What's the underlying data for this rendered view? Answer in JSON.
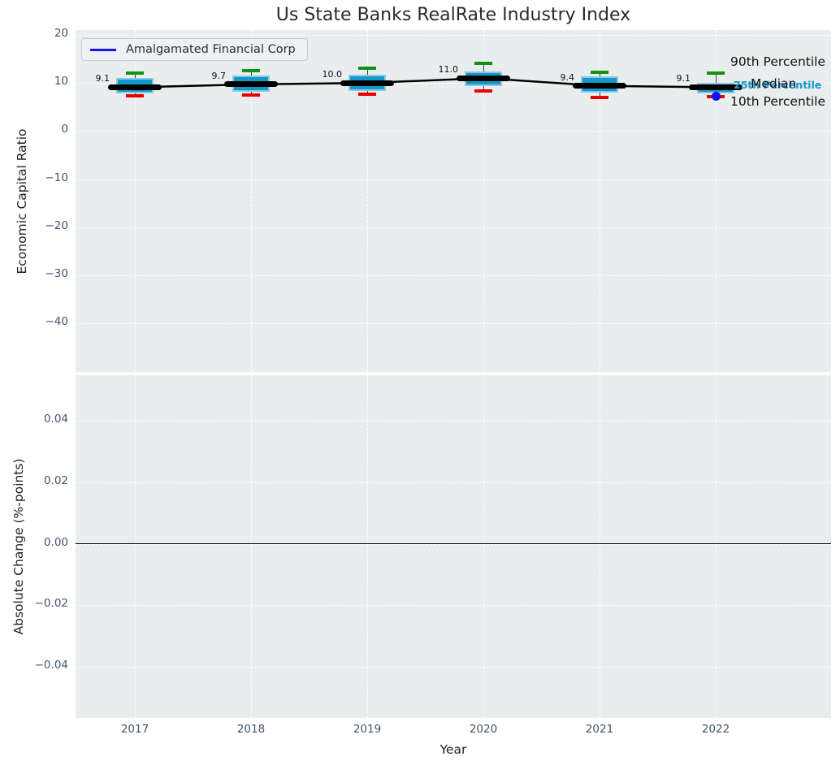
{
  "figure": {
    "title": "Us State Banks RealRate Industry Index",
    "legend": {
      "label": "Amalgamated Financial Corp",
      "line_color": "#1412e6"
    },
    "annotations": {
      "p90": "90th Percentile",
      "median": "Median",
      "p75_blue": "75th Percentile",
      "p25_blue": "25th Percentile",
      "p10": "10th Percentile"
    }
  },
  "chart_data": {
    "type": "box",
    "title": "Us State Banks RealRate Industry Index",
    "x": [
      "2017",
      "2018",
      "2019",
      "2020",
      "2021",
      "2022"
    ],
    "xlabel": "Year",
    "panels": [
      {
        "ylabel": "Economic Capital Ratio",
        "ylim": [
          -50.1,
          21.0
        ],
        "yticks": [
          {
            "v": 20,
            "label": "20"
          },
          {
            "v": 10,
            "label": "10"
          },
          {
            "v": 0,
            "label": "0"
          },
          {
            "v": -10,
            "label": "−10"
          },
          {
            "v": -20,
            "label": "−20"
          },
          {
            "v": -30,
            "label": "−30"
          },
          {
            "v": -40,
            "label": "−40"
          }
        ],
        "boxes": [
          {
            "year": "2017",
            "p90": 12.1,
            "p75": 11.1,
            "median": 9.1,
            "p25": 7.9,
            "p10": 7.4
          },
          {
            "year": "2018",
            "p90": 12.6,
            "p75": 11.5,
            "median": 9.7,
            "p25": 8.2,
            "p10": 7.5
          },
          {
            "year": "2019",
            "p90": 13.0,
            "p75": 11.7,
            "median": 10.0,
            "p25": 8.3,
            "p10": 7.6
          },
          {
            "year": "2020",
            "p90": 14.0,
            "p75": 12.4,
            "median": 11.0,
            "p25": 9.4,
            "p10": 8.3
          },
          {
            "year": "2021",
            "p90": 12.3,
            "p75": 11.3,
            "median": 9.4,
            "p25": 8.0,
            "p10": 7.0
          },
          {
            "year": "2022",
            "p90": 12.1,
            "p75": 10.1,
            "median": 9.1,
            "p25": 7.8,
            "p10": 7.2
          }
        ],
        "median_labels": [
          "9.1",
          "9.7",
          "10.0",
          "11.0",
          "9.4",
          "9.1"
        ],
        "company_point": {
          "name": "Amalgamated Financial Corp",
          "year": "2022",
          "value": 7.2
        },
        "colors": {
          "box": "#1399c7",
          "box_edge": "#8ac9e1",
          "p90_cap": "#0f930f",
          "p10_cap": "#e80000",
          "median": "#000000",
          "company": "#1412e6"
        },
        "legend_position": "upper left",
        "grid": true
      },
      {
        "ylabel": "Absolute Change (%-points)",
        "ylim": [
          -0.0565,
          0.0547
        ],
        "yticks": [
          {
            "v": 0.04,
            "label": "0.04"
          },
          {
            "v": 0.02,
            "label": "0.02"
          },
          {
            "v": 0,
            "label": "0.00"
          },
          {
            "v": -0.02,
            "label": "−0.02"
          },
          {
            "v": -0.04,
            "label": "−0.04"
          }
        ],
        "zero_line": {
          "value": 0,
          "color": "#000000"
        },
        "grid": true
      }
    ]
  }
}
